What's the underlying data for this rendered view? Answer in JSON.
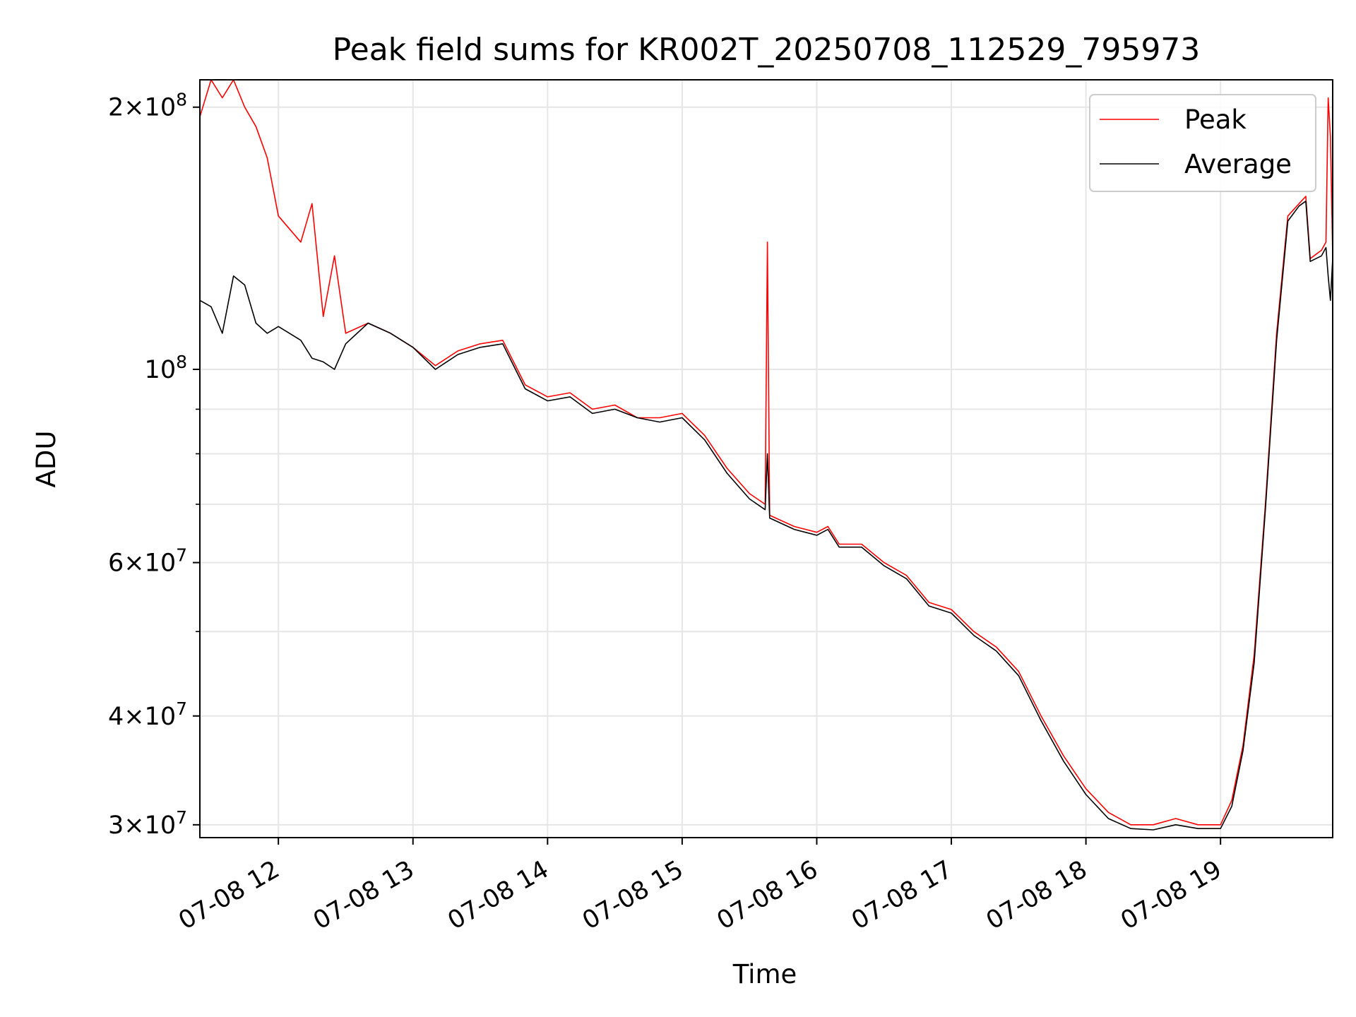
{
  "chart_data": {
    "type": "line",
    "title": "Peak field sums for KR002T_20250708_112529_795973",
    "xlabel": "Time",
    "ylabel": "ADU",
    "yscale": "log",
    "xlim": [
      "2025-07-08 11:25",
      "2025-07-08 19:50"
    ],
    "ylim": [
      29000000,
      215000000
    ],
    "grid": true,
    "legend_position": "top-right",
    "x_ticks": [
      {
        "x": "2025-07-08 12:00",
        "label": "07-08 12"
      },
      {
        "x": "2025-07-08 13:00",
        "label": "07-08 13"
      },
      {
        "x": "2025-07-08 14:00",
        "label": "07-08 14"
      },
      {
        "x": "2025-07-08 15:00",
        "label": "07-08 15"
      },
      {
        "x": "2025-07-08 16:00",
        "label": "07-08 16"
      },
      {
        "x": "2025-07-08 17:00",
        "label": "07-08 17"
      },
      {
        "x": "2025-07-08 18:00",
        "label": "07-08 18"
      },
      {
        "x": "2025-07-08 19:00",
        "label": "07-08 19"
      }
    ],
    "y_ticks_major": [
      {
        "value": 30000000,
        "mantissa": "3",
        "exp": "7"
      },
      {
        "value": 40000000,
        "mantissa": "4",
        "exp": "7"
      },
      {
        "value": 60000000,
        "mantissa": "6",
        "exp": "7"
      },
      {
        "value": 100000000,
        "mantissa": "",
        "exp": "8"
      },
      {
        "value": 200000000,
        "mantissa": "2",
        "exp": "8"
      }
    ],
    "y_ticks_minor": [
      50000000,
      70000000,
      80000000,
      90000000
    ],
    "series": [
      {
        "name": "Peak",
        "color": "#ff0000",
        "x": [
          "2025-07-08 11:25",
          "2025-07-08 11:30",
          "2025-07-08 11:35",
          "2025-07-08 11:40",
          "2025-07-08 11:45",
          "2025-07-08 11:50",
          "2025-07-08 11:55",
          "2025-07-08 12:00",
          "2025-07-08 12:10",
          "2025-07-08 12:15",
          "2025-07-08 12:20",
          "2025-07-08 12:25",
          "2025-07-08 12:30",
          "2025-07-08 12:40",
          "2025-07-08 12:50",
          "2025-07-08 13:00",
          "2025-07-08 13:10",
          "2025-07-08 13:20",
          "2025-07-08 13:30",
          "2025-07-08 13:40",
          "2025-07-08 13:50",
          "2025-07-08 14:00",
          "2025-07-08 14:10",
          "2025-07-08 14:20",
          "2025-07-08 14:30",
          "2025-07-08 14:40",
          "2025-07-08 14:50",
          "2025-07-08 15:00",
          "2025-07-08 15:10",
          "2025-07-08 15:20",
          "2025-07-08 15:30",
          "2025-07-08 15:37",
          "2025-07-08 15:38",
          "2025-07-08 15:39",
          "2025-07-08 15:50",
          "2025-07-08 16:00",
          "2025-07-08 16:05",
          "2025-07-08 16:10",
          "2025-07-08 16:20",
          "2025-07-08 16:30",
          "2025-07-08 16:40",
          "2025-07-08 16:50",
          "2025-07-08 17:00",
          "2025-07-08 17:10",
          "2025-07-08 17:20",
          "2025-07-08 17:30",
          "2025-07-08 17:40",
          "2025-07-08 17:50",
          "2025-07-08 18:00",
          "2025-07-08 18:10",
          "2025-07-08 18:20",
          "2025-07-08 18:30",
          "2025-07-08 18:40",
          "2025-07-08 18:50",
          "2025-07-08 19:00",
          "2025-07-08 19:05",
          "2025-07-08 19:10",
          "2025-07-08 19:15",
          "2025-07-08 19:20",
          "2025-07-08 19:25",
          "2025-07-08 19:30",
          "2025-07-08 19:35",
          "2025-07-08 19:38",
          "2025-07-08 19:40",
          "2025-07-08 19:45",
          "2025-07-08 19:47",
          "2025-07-08 19:48",
          "2025-07-08 19:49",
          "2025-07-08 19:50"
        ],
        "y": [
          195000000,
          215000000,
          205000000,
          215000000,
          200000000,
          190000000,
          175000000,
          150000000,
          140000000,
          155000000,
          115000000,
          135000000,
          110000000,
          113000000,
          110000000,
          106000000,
          101000000,
          105000000,
          107000000,
          108000000,
          96000000,
          93000000,
          94000000,
          90000000,
          91000000,
          88000000,
          88000000,
          89000000,
          84000000,
          77000000,
          72000000,
          70000000,
          140000000,
          68000000,
          66000000,
          65000000,
          66000000,
          63000000,
          63000000,
          60000000,
          58000000,
          54000000,
          53000000,
          50000000,
          48000000,
          45000000,
          40000000,
          36000000,
          33000000,
          31000000,
          30000000,
          30000000,
          30500000,
          30000000,
          30000000,
          32000000,
          37000000,
          47000000,
          70000000,
          110000000,
          150000000,
          155000000,
          158000000,
          134000000,
          137000000,
          140000000,
          205000000,
          185000000,
          135000000
        ]
      },
      {
        "name": "Average",
        "color": "#000000",
        "x": [
          "2025-07-08 11:25",
          "2025-07-08 11:30",
          "2025-07-08 11:35",
          "2025-07-08 11:40",
          "2025-07-08 11:45",
          "2025-07-08 11:50",
          "2025-07-08 11:55",
          "2025-07-08 12:00",
          "2025-07-08 12:10",
          "2025-07-08 12:15",
          "2025-07-08 12:20",
          "2025-07-08 12:25",
          "2025-07-08 12:30",
          "2025-07-08 12:40",
          "2025-07-08 12:50",
          "2025-07-08 13:00",
          "2025-07-08 13:10",
          "2025-07-08 13:20",
          "2025-07-08 13:30",
          "2025-07-08 13:40",
          "2025-07-08 13:50",
          "2025-07-08 14:00",
          "2025-07-08 14:10",
          "2025-07-08 14:20",
          "2025-07-08 14:30",
          "2025-07-08 14:40",
          "2025-07-08 14:50",
          "2025-07-08 15:00",
          "2025-07-08 15:10",
          "2025-07-08 15:20",
          "2025-07-08 15:30",
          "2025-07-08 15:37",
          "2025-07-08 15:38",
          "2025-07-08 15:39",
          "2025-07-08 15:50",
          "2025-07-08 16:00",
          "2025-07-08 16:05",
          "2025-07-08 16:10",
          "2025-07-08 16:20",
          "2025-07-08 16:30",
          "2025-07-08 16:40",
          "2025-07-08 16:50",
          "2025-07-08 17:00",
          "2025-07-08 17:10",
          "2025-07-08 17:20",
          "2025-07-08 17:30",
          "2025-07-08 17:40",
          "2025-07-08 17:50",
          "2025-07-08 18:00",
          "2025-07-08 18:10",
          "2025-07-08 18:20",
          "2025-07-08 18:30",
          "2025-07-08 18:40",
          "2025-07-08 18:50",
          "2025-07-08 19:00",
          "2025-07-08 19:05",
          "2025-07-08 19:10",
          "2025-07-08 19:15",
          "2025-07-08 19:20",
          "2025-07-08 19:25",
          "2025-07-08 19:30",
          "2025-07-08 19:35",
          "2025-07-08 19:38",
          "2025-07-08 19:40",
          "2025-07-08 19:45",
          "2025-07-08 19:47",
          "2025-07-08 19:48",
          "2025-07-08 19:49",
          "2025-07-08 19:50"
        ],
        "y": [
          120000000,
          118000000,
          110000000,
          128000000,
          125000000,
          113000000,
          110000000,
          112000000,
          108000000,
          103000000,
          102000000,
          100000000,
          107000000,
          113000000,
          110000000,
          106000000,
          100000000,
          104000000,
          106000000,
          107000000,
          95000000,
          92000000,
          93000000,
          89000000,
          90000000,
          88000000,
          87000000,
          88000000,
          83000000,
          76000000,
          71000000,
          69000000,
          80000000,
          67500000,
          65500000,
          64500000,
          65500000,
          62500000,
          62500000,
          59500000,
          57500000,
          53500000,
          52500000,
          49500000,
          47500000,
          44500000,
          39500000,
          35500000,
          32500000,
          30500000,
          29700000,
          29600000,
          30000000,
          29700000,
          29700000,
          31500000,
          36500000,
          46000000,
          69000000,
          108000000,
          148000000,
          154000000,
          156000000,
          133000000,
          135000000,
          138000000,
          128000000,
          120000000,
          134000000
        ]
      }
    ]
  }
}
